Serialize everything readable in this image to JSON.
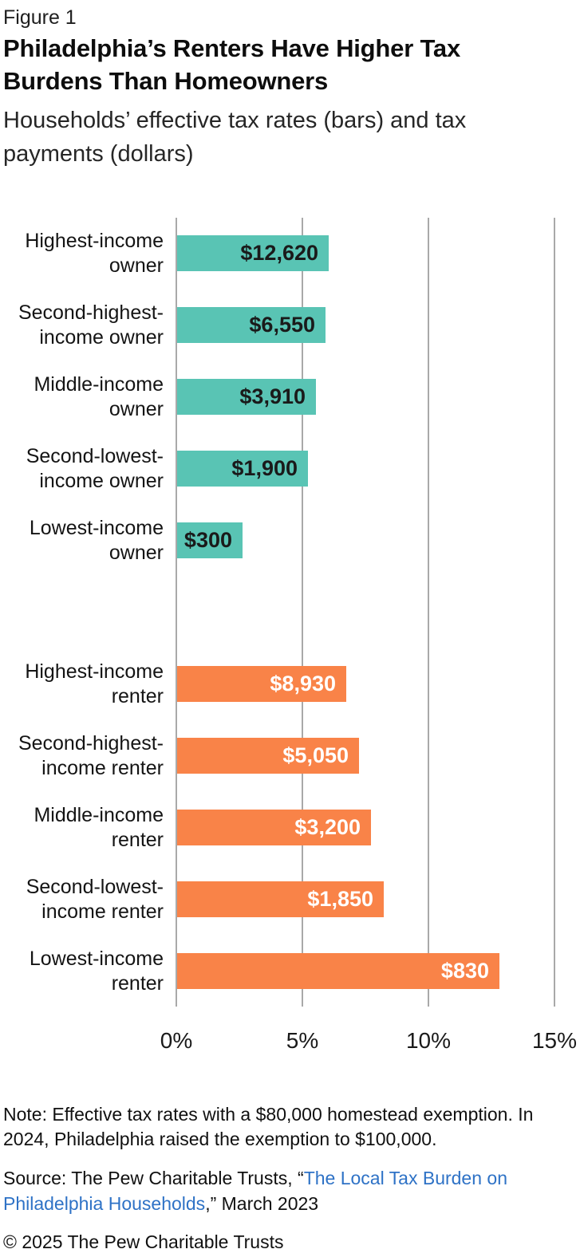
{
  "figure_label": "Figure 1",
  "chart_data": {
    "type": "bar",
    "orientation": "horizontal",
    "title": "Philadelphia’s Renters Have Higher Tax\nBurdens Than Homeowners",
    "subtitle": "Households’ effective tax rates (bars) and tax\npayments (dollars)",
    "value_unit": "effective tax rate (%)",
    "xlim": [
      0,
      16.2
    ],
    "gridlines": true,
    "legend": "none",
    "ticks": [
      {
        "label": "0%",
        "value": 0
      },
      {
        "label": "5%",
        "value": 5
      },
      {
        "label": "10%",
        "value": 10
      },
      {
        "label": "15%",
        "value": 15
      }
    ],
    "groups": [
      {
        "name": "owners",
        "color": "#59C4B4",
        "value_label_color": "#1A1A1A",
        "bars": [
          {
            "category": "Highest-income owner",
            "label_lines": [
              "Highest-income",
              "owner"
            ],
            "rate_pct": 6.0,
            "payment": "$12,620"
          },
          {
            "category": "Second-highest-income owner",
            "label_lines": [
              "Second-highest-",
              "income owner"
            ],
            "rate_pct": 5.9,
            "payment": "$6,550"
          },
          {
            "category": "Middle-income owner",
            "label_lines": [
              "Middle-income",
              "owner"
            ],
            "rate_pct": 5.5,
            "payment": "$3,910"
          },
          {
            "category": "Second-lowest-income owner",
            "label_lines": [
              "Second-lowest-",
              "income owner"
            ],
            "rate_pct": 5.2,
            "payment": "$1,900"
          },
          {
            "category": "Lowest-income owner",
            "label_lines": [
              "Lowest-income",
              "owner"
            ],
            "rate_pct": 2.6,
            "payment": "$300"
          }
        ]
      },
      {
        "name": "renters",
        "color": "#F98348",
        "value_label_color": "#FFFFFF",
        "bars": [
          {
            "category": "Highest-income renter",
            "label_lines": [
              "Highest-income",
              "renter"
            ],
            "rate_pct": 6.7,
            "payment": "$8,930"
          },
          {
            "category": "Second-highest-income renter",
            "label_lines": [
              "Second-highest-",
              "income renter"
            ],
            "rate_pct": 7.2,
            "payment": "$5,050"
          },
          {
            "category": "Middle-income renter",
            "label_lines": [
              "Middle-income",
              "renter"
            ],
            "rate_pct": 7.7,
            "payment": "$3,200"
          },
          {
            "category": "Second-lowest-income renter",
            "label_lines": [
              "Second-lowest-",
              "income renter"
            ],
            "rate_pct": 8.2,
            "payment": "$1,850"
          },
          {
            "category": "Lowest-income renter",
            "label_lines": [
              "Lowest-income",
              "renter"
            ],
            "rate_pct": 12.8,
            "payment": "$830"
          }
        ]
      }
    ]
  },
  "note": "Note: Effective tax rates with a $80,000 homestead exemption. In\n2024, Philadelphia raised the exemption to $100,000.",
  "source": {
    "prefix": "Source: The Pew Charitable Trusts, “",
    "link_text": "The Local Tax Burden on\nPhiladelphia Households",
    "suffix": ",” March 2023",
    "link_color": "#2E72C6"
  },
  "copyright": "© 2025 The Pew Charitable Trusts"
}
